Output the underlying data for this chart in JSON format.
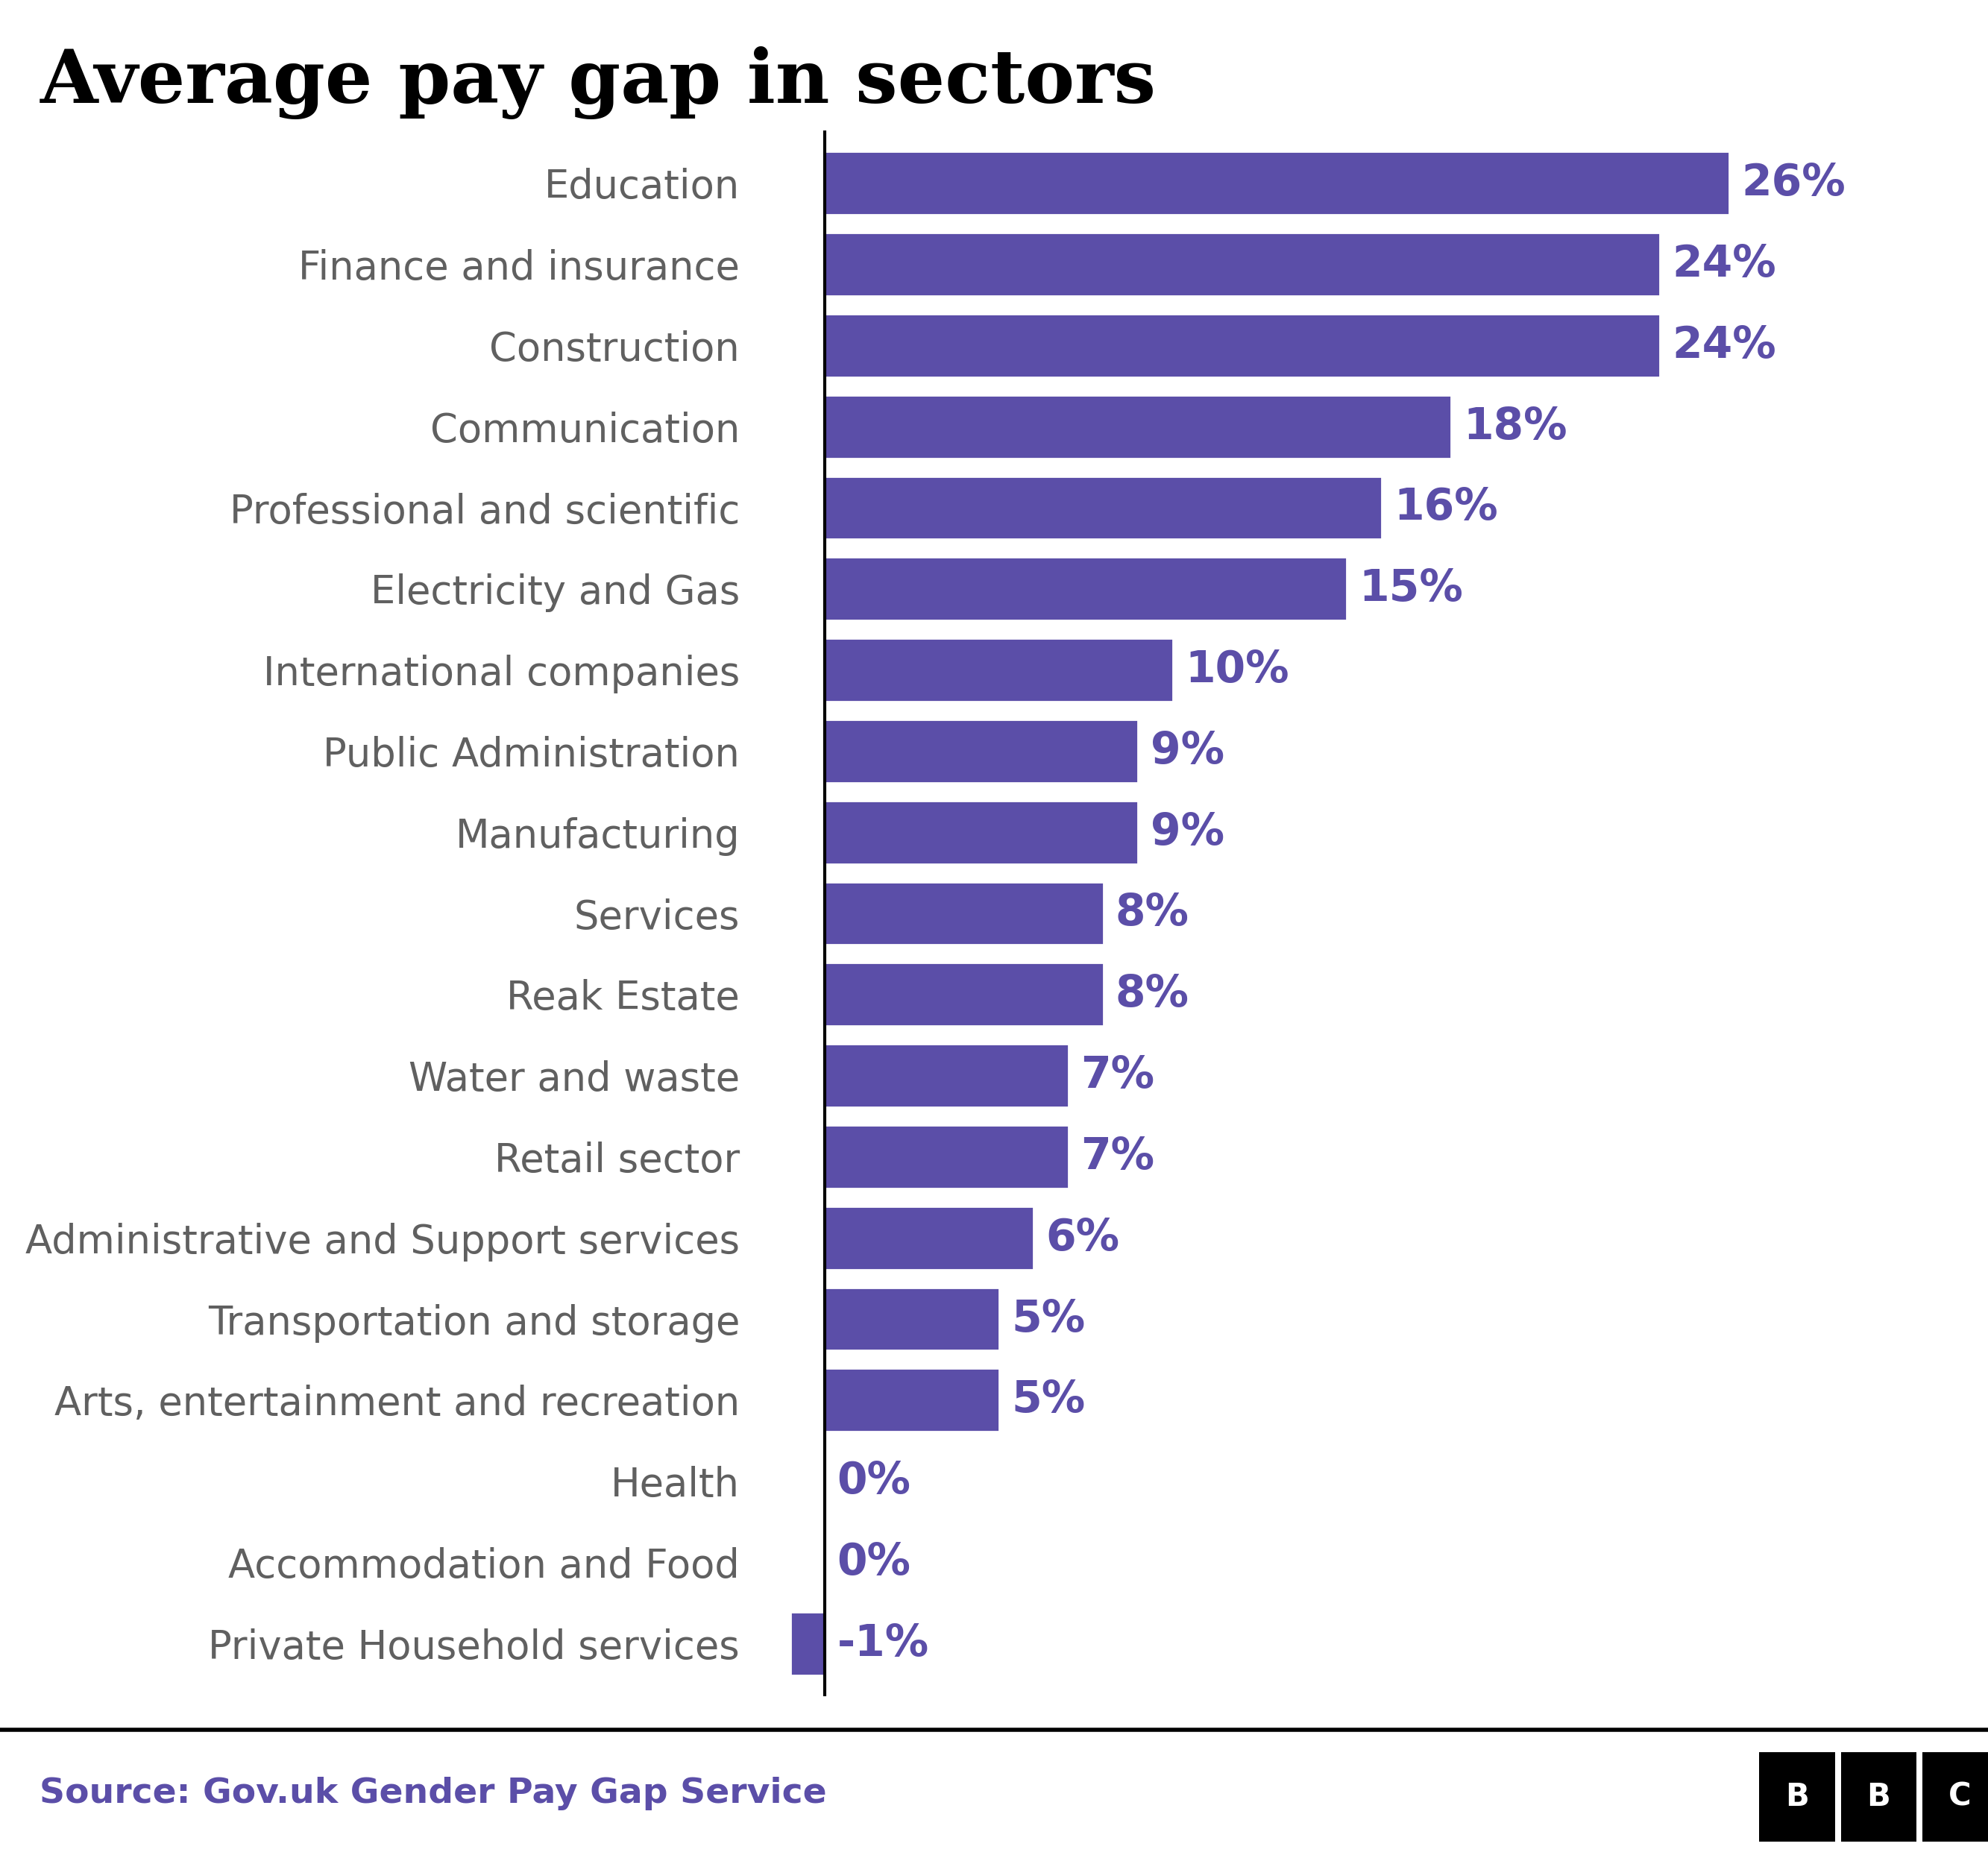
{
  "title": "Average pay gap in sectors",
  "categories": [
    "Education",
    "Finance and insurance",
    "Construction",
    "Communication",
    "Professional and scientific",
    "Electricity and Gas",
    "International companies",
    "Public Administration",
    "Manufacturing",
    "Services",
    "Reak Estate",
    "Water and waste",
    "Retail sector",
    "Administrative and Support services",
    "Transportation and storage",
    "Arts, entertainment and recreation",
    "Health",
    "Accommodation and Food",
    "Private Household services"
  ],
  "values": [
    26,
    24,
    24,
    18,
    16,
    15,
    10,
    9,
    9,
    8,
    8,
    7,
    7,
    6,
    5,
    5,
    0,
    0,
    -1
  ],
  "bar_color": "#5b4ea8",
  "label_color": "#5b4ea8",
  "title_color": "#000000",
  "category_color": "#606060",
  "background_color": "#ffffff",
  "source_text": "Source: Gov.uk Gender Pay Gap Service",
  "source_color": "#5b4ea8",
  "title_fontsize": 72,
  "category_fontsize": 38,
  "label_fontsize": 42,
  "source_fontsize": 34,
  "bar_height": 0.78,
  "xlim": [
    -2,
    30
  ]
}
